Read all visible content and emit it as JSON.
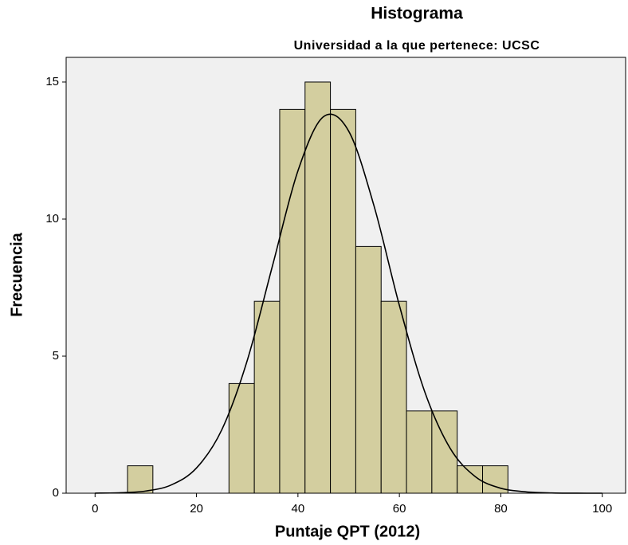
{
  "chart_data": {
    "type": "histogram",
    "title": "Histograma",
    "subtitle": "Universidad a la que pertenece: UCSC",
    "x_label": "Puntaje QPT (2012)",
    "y_label": "Frecuencia",
    "bins": [
      6.4,
      11.4,
      16.4,
      21.4,
      26.4,
      31.4,
      36.4,
      41.4,
      46.4,
      51.4,
      56.4,
      61.4,
      66.4,
      71.4,
      76.4,
      81.4
    ],
    "values": [
      1,
      0,
      0,
      0,
      4,
      7,
      14,
      15,
      14,
      9,
      7,
      3,
      3,
      1,
      1
    ],
    "color": "#d3ce9f",
    "curve": {
      "color": "#000000",
      "x": [
        0,
        5,
        10,
        15,
        20,
        25,
        30,
        35,
        40,
        45,
        50,
        55,
        60,
        65,
        70,
        75,
        80,
        85,
        90,
        95,
        100
      ],
      "y": [
        0.003,
        0.018,
        0.08,
        0.3,
        0.92,
        2.32,
        4.84,
        8.31,
        11.76,
        13.73,
        13.21,
        10.48,
        6.85,
        3.7,
        1.64,
        0.6,
        0.18,
        0.05,
        0.01,
        0.001,
        0
      ]
    },
    "xlim": [
      -5.7,
      104.6
    ],
    "ylim": [
      0,
      15.9
    ],
    "xticks": [
      0,
      20,
      40,
      60,
      80,
      100
    ],
    "yticks": [
      0,
      5,
      10,
      15
    ]
  }
}
